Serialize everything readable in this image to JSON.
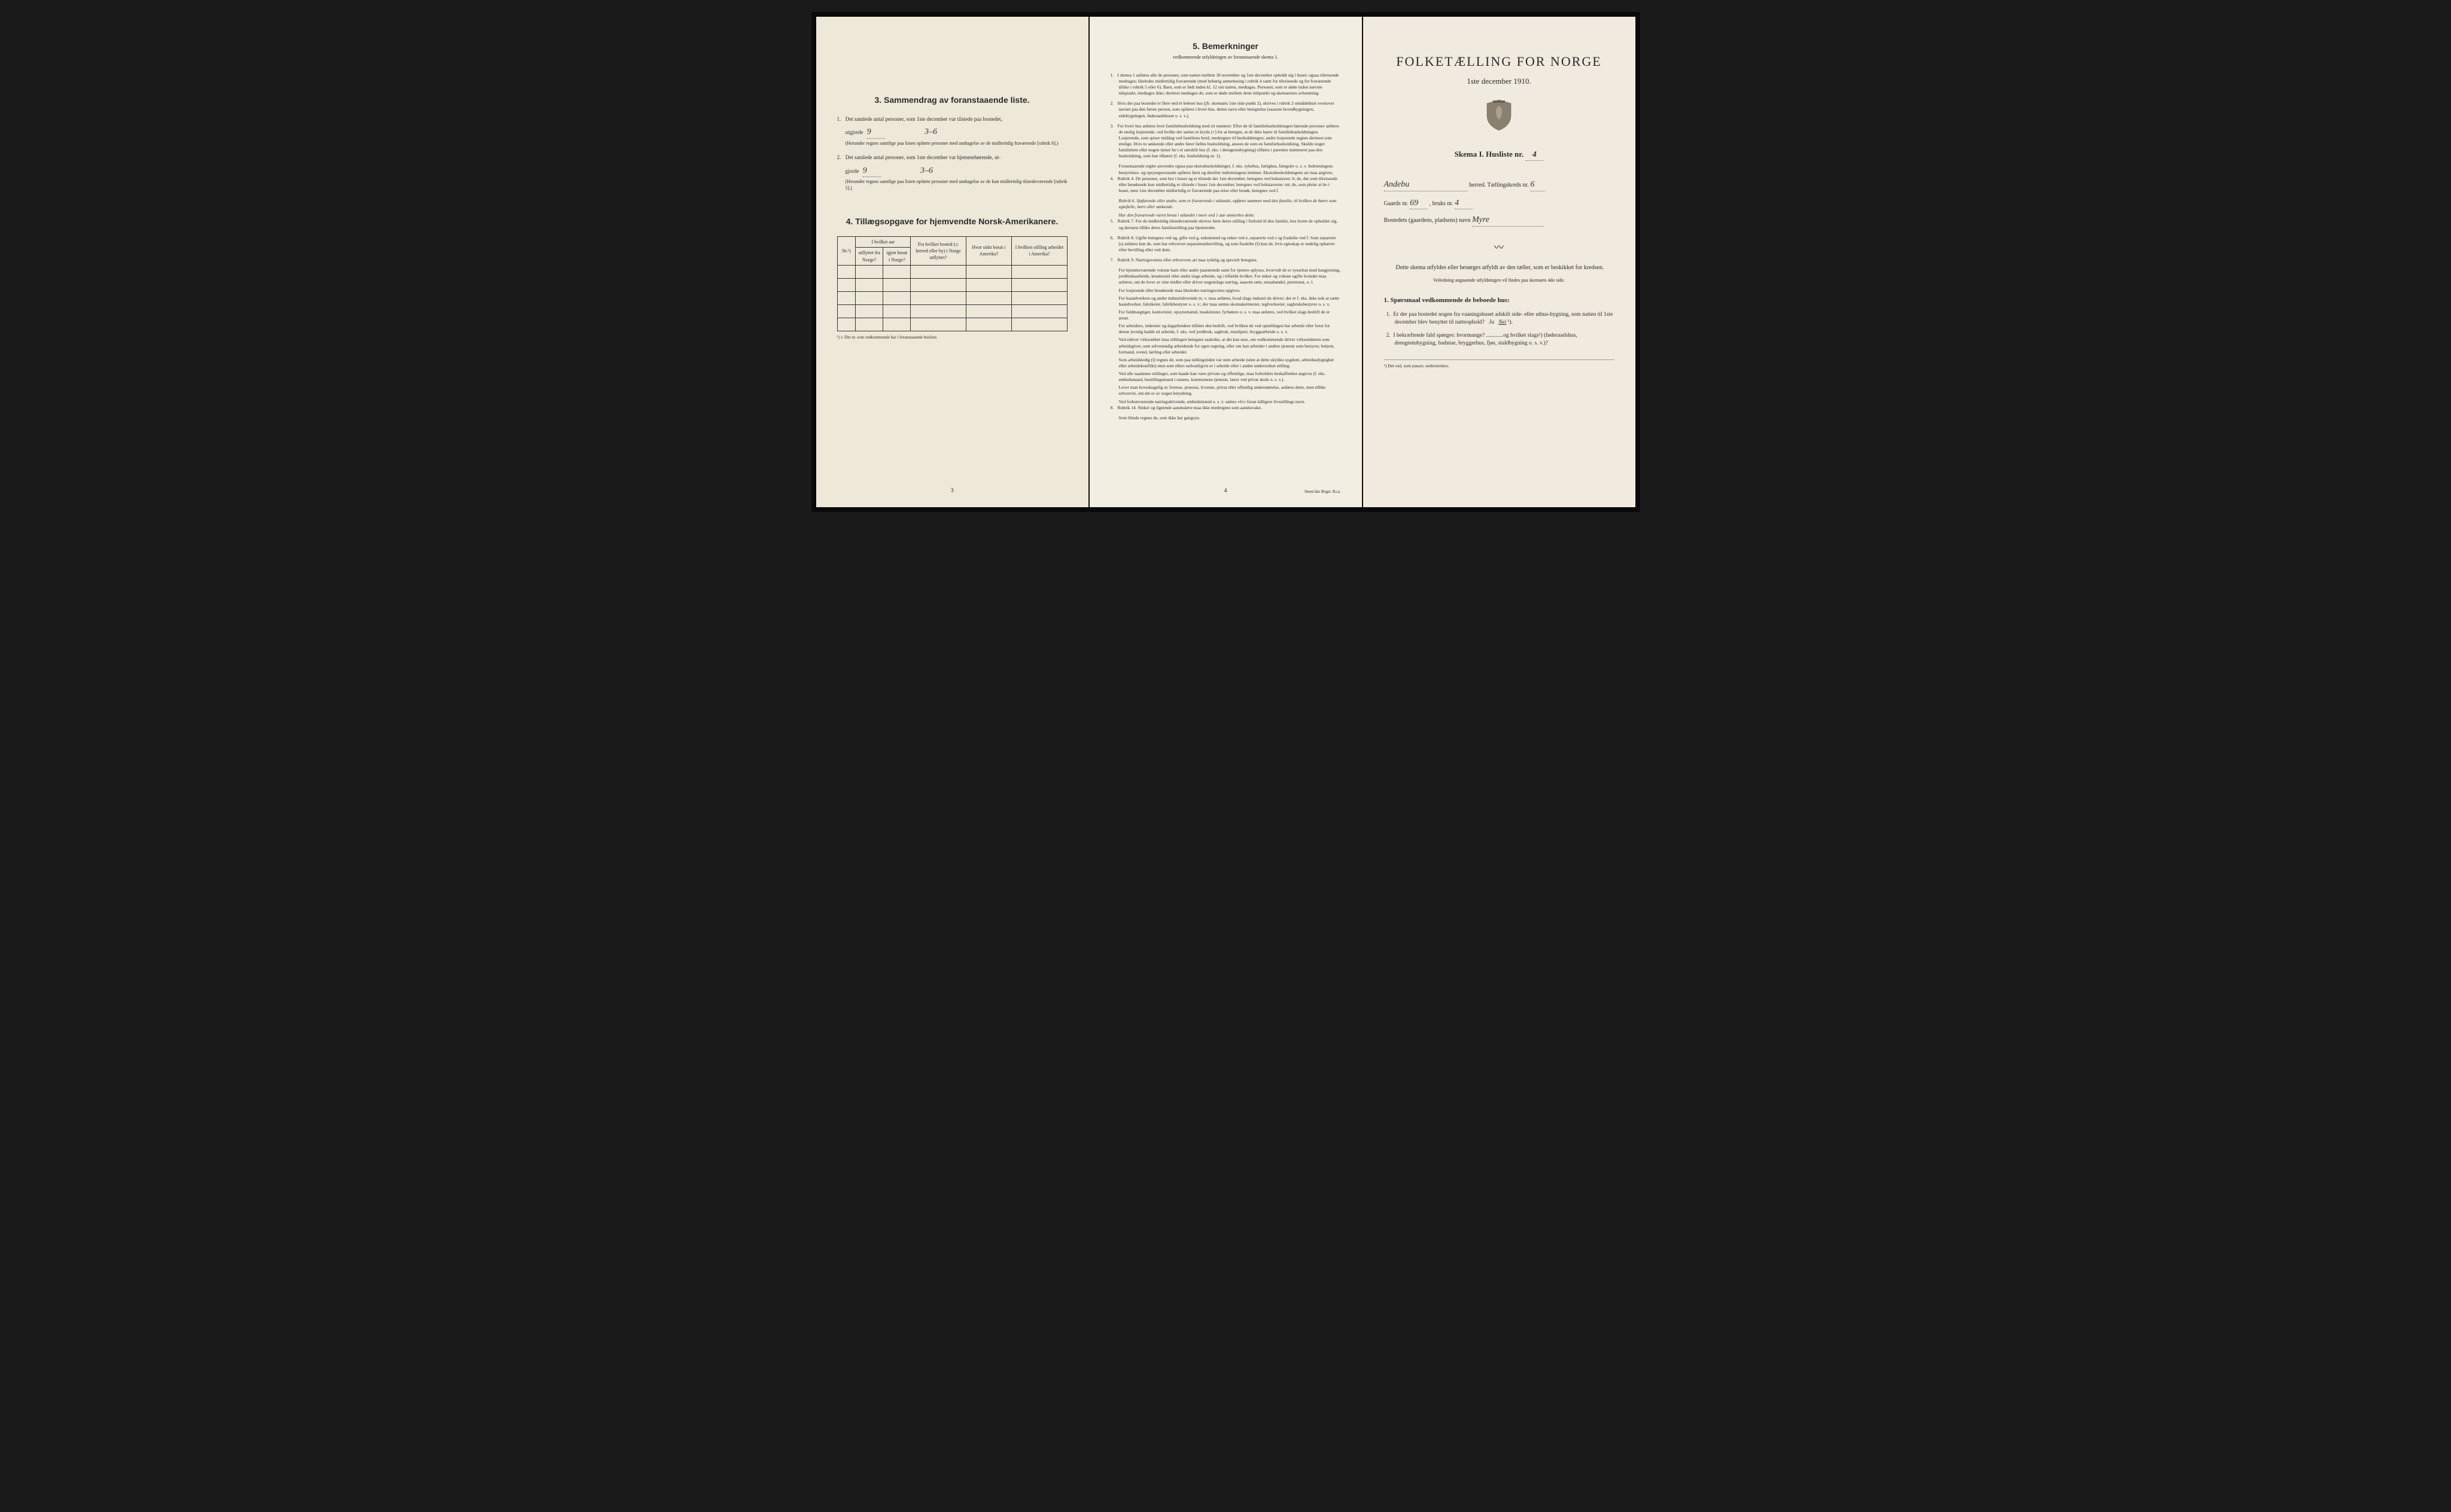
{
  "colors": {
    "page_bg_1": "#ede8d8",
    "page_bg_2": "#f2eee2",
    "page_bg_3": "#f0ebde",
    "text": "#2a2a2a",
    "border": "#333333",
    "dotted": "#666666",
    "crest_fill": "#8a8070"
  },
  "typography": {
    "body_font": "Georgia, Times New Roman, serif",
    "body_size_pt": 9,
    "title_size_pt": 22,
    "section_title_pt": 14,
    "remarks_size_pt": 7.5,
    "handwritten_font": "Brush Script MT, cursive"
  },
  "page3_left": {
    "section3_title": "3.   Sammendrag av foranstaaende liste.",
    "item1_text": "Det samlede antal personer, som 1ste december var tilstede paa bostedet,",
    "item1_prefix": "utgjorde",
    "item1_value": "9",
    "item1_written": "3–6",
    "item1_note": "(Herunder regnes samtlige paa listen opførte personer med undtagelse av de midlertidig fraværende [rubrik 6].)",
    "item2_text": "Det samlede antal personer, som 1ste december var hjemmehørende, ut-",
    "item2_prefix": "gjorde",
    "item2_value": "9",
    "item2_written": "3–6",
    "item2_note": "(Herunder regnes samtlige paa listen opførte personer med undtagelse av de kun midlertidig tilstedeværende [rubrik 5].)",
    "section4_title": "4.  Tillægsopgave for hjemvendte Norsk-Amerikanere.",
    "table": {
      "columns": [
        "Nr.¹)",
        "I hvilket aar",
        "Fra hvilket bosted (ɔ: herred eller by) i Norge utflyttet?",
        "Hvor sidst bosat i Amerika?",
        "I hvilken stilling arbeidet i Amerika?"
      ],
      "sub_columns": [
        "",
        "utflyttet fra Norge?",
        "igjen bosat i Norge?",
        "",
        "",
        ""
      ],
      "col_widths": [
        "8%",
        "12%",
        "12%",
        "24%",
        "20%",
        "24%"
      ],
      "empty_rows": 5
    },
    "table_footnote": "¹) ɔ: Det nr. som vedkommende har i foranstaaende husliste.",
    "page_number": "3"
  },
  "page4_middle": {
    "section5_title": "5.   Bemerkninger",
    "section5_sub": "vedkommende utfyldningen av foranstaaende skema 1.",
    "items": [
      {
        "n": "1.",
        "text": "I skema 1 anføres alle de personer, som natten mellem 30 november og 1ste december opholdt sig i huset; ogsaa tilreisende medtages; likeledes midlertidig fraværende (med behørig anmerkning i rubrik 4 samt for tilreisende og for fraværende tillike i rubrik 5 eller 6). Barn, som er født inden kl. 12 om natten, medtages. Personer, som er døde inden nævnte tidspunkt, medtages ikke; derimot medtages de, som er døde mellem dette tidspunkt og skemaernes avhentning."
      },
      {
        "n": "2.",
        "text": "Hvis der paa bostedet er flere end ét beboet hus (jfr. skemaets 1ste side punkt 2), skrives i rubrik 2 umiddelbart ovenover navnet paa den første person, som opføres i hvert hus, dettes navn eller betegnelse (saasom hovedbygningen, sidebygningen, føderaadshuset o. s. v.)."
      },
      {
        "n": "3.",
        "text": "For hvert hus anføres hver familiehusholdning med sit nummer. Efter de til familiehusholdningen hørende personer anføres de enslig losjerende, ved hvilke der sættes et kryds (×) for at betegne, at de ikke hører til familiehusholdningen. Losjerende, som spiser middag ved familiens bord, medregnes til husholdningen; andre losjerende regnes derimot som enslige. Hvis to søskende eller andre fører fælles husholdning, ansees de som en familiehusholdning. Skulde noget familielem eller nogen tjener bo i et særskilt hus (f. eks. i drengestubygning) tilføies i parentes nummeret paa den husholdning, som han tilhører (f. eks. husholdning nr. 1).",
        "sub": "Foranstaaende regler anvendes ogsaa paa ekstrahusholdninger, f. eks. sykehus, fattighus, fængsler o. s. v. Indretningens bestyrelses- og opsynspersonale opføres først og derefter indretningens lemmer. Ekstrahusholdningens art maa angives."
      },
      {
        "n": "4.",
        "text": "Rubrik 4. De personer, som bor i huset og er tilstede der 1ste december, betegnes ved bokstaven: b; de, der som tilreisende eller besøkende kun midlertidig er tilstede i huset 1ste december, betegnes ved bokstaverne: mt; de, som pleier at bo i huset, men 1ste december midlertidig er fraværende paa reise eller besøk, betegnes ved f.",
        "rubrik": "Rubrik 6. Sjøfarende eller andre, som er fraværende i utlandet, opføres sammen med den familie, til hvilken de hører som egtefælle, barn eller søskende.",
        "rubrik2": "Har den fraværende været bosat i utlandet i mere end 1 aar anmerkes dette."
      },
      {
        "n": "5.",
        "text": "Rubrik 7. For de midlertidig tilstedeværende skrives først deres stilling i forhold til den familie, hos hvem de opholder sig, og dernæst tillike deres familiestilling paa hjemstedet."
      },
      {
        "n": "6.",
        "text": "Rubrik 8. Ugifte betegnes ved ug, gifte ved g, enkemænd og enker ved e, separerte ved s og fraskilte ved f. Som separerte (s) anføres kun de, som har erhvervet separationsbevilling, og som fraskilte (f) kun de, hvis egteskap er endelig ophævet efter bevilling eller ved dom."
      },
      {
        "n": "7.",
        "text": "Rubrik 9. Næringsveiens eller erhvervets art maa tydelig og specielt betegnes.",
        "subs": [
          "For hjemmeværende voksne barn eller andre paarørende samt for tjenere oplyses, hvorvidt de er sysselsat med husgjerning, jordbruksarbeide, kreaturstel eller andet slags arbeide, og i tilfælde hvilket. For enker og voksne ugifte kvinder maa anføres, om de lever av sine midler eller driver nogenslags næring, saasom søm, smaahandel, pensionat, o. l.",
          "For losjerende eller besøkende maa likeledes næringsveien opgives.",
          "For haandverkere og andre industridrivende m. v. maa anføres, hvad slags industri de driver; det er f. eks. ikke nok at sætte haandverker, fabrikeier, fabrikbestyrer o. s. v.; der maa sættes skomakermester, teglverkseier, sagbruksbestyrer o. s. v.",
          "For fuldmægtiger, kontorister, opsynsmænd, maskinister, fyrbøtere o. s. v. maa anføres, ved hvilket slags bedrift de er ansat.",
          "For arbeidere, inderster og dagarbeidere tilføies den bedrift, ved hvilken de ved optællingen har arbeide eller forut for denne jevnlig hadde sit arbeide, f. eks. ved jordbruk, sagbruk, træsliperi, bryggearbeide o. s. v.",
          "Ved enhver virksomhet maa stillingen betegnes saaledes, at det kan sees, om vedkommende driver virksomheten som arbeidsgiver, som selvstændig arbeidende for egen regning, eller om han arbeider i andres tjeneste som bestyrer, betjent, formand, svend, lærling eller arbeider.",
          "Som arbeidsledig (l) regnes de, som paa tællingstiden var uten arbeide (uten at dette skyldes sygdom, arbeidsudygtighet eller arbeidskonflikt) men som ellers sedvanligvis er i arbeide eller i anden underordnet stilling.",
          "Ved alle saadanne stillinger, som baade kan være private og offentlige, maa forholdets beskaffenhet angives (f. eks. embedsmand, bestillingsmand i statens, kommunens tjeneste, lærer ved privat skole o. s. v.).",
          "Lever man hovedsagelig av formue, pension, livrente, privat eller offentlig understøttelse, anføres dette, men tillike erhvervet, om det er av nogen betydning.",
          "Ved forhenværende næringsdrivende, embedsmænd o. s. v. sættes «fv» foran tidligere livsstillings navn."
        ]
      },
      {
        "n": "8.",
        "text": "Rubrik 14. Sinker og lignende aandssløve maa ikke medregnes som aandssvake.",
        "sub": "Som blinde regnes de, som ikke har gangsyn."
      }
    ],
    "page_number": "4",
    "printer": "Steen'ske Bogtr. Kr.a."
  },
  "page1_right": {
    "main_title": "FOLKETÆLLING FOR NORGE",
    "subtitle": "1ste december 1910.",
    "skema_label": "Skema I.  Husliste nr.",
    "skema_nr": "4",
    "herred_name": "Andebu",
    "herred_suffix": "herred.  Tællingskreds nr.",
    "kreds_nr": "6",
    "gaards_label": "Gaards nr.",
    "gaards_nr": "69",
    "bruks_label": ", bruks nr.",
    "bruks_nr": "4",
    "bosted_label": "Bostedets (gaardens, pladsens) navn",
    "bosted_name": "Myre",
    "instruct1": "Dette skema utfyldes eller besørges utfyldt av den tæller, som er beskikket for kredsen.",
    "instruct2": "Veiledning angaaende utfyldningen vil findes paa skemaets 4de side.",
    "q_heading": "1. Spørsmaal vedkommende de beboede hus:",
    "q1": "Er der paa bostedet nogen fra vaaningshuset adskilt side- eller uthus-bygning, som natten til 1ste december blev benyttet til natteophold?   Ja   Nei ¹).",
    "q1_answer_underlined": "Nei",
    "q2": "I bekræftende fald spørges: hvormange? ............og hvilket slags¹) (føderaadshus, drengestubygning, badstue, bryggerhus, fjøs, staldbygning o. s. v.)?",
    "footnote": "¹) Det ord, som passer, understrekes."
  }
}
